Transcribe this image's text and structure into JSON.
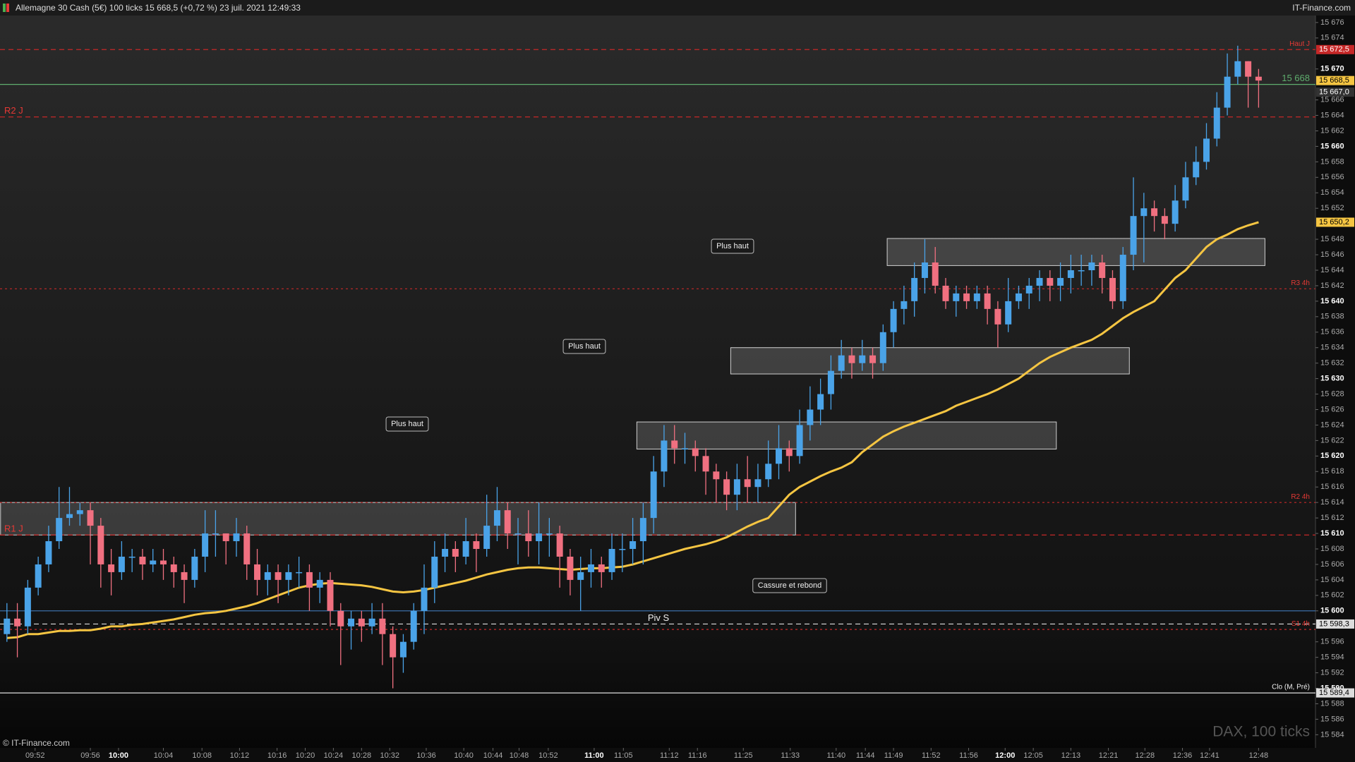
{
  "header": {
    "title": "Allemagne 30 Cash (5€) 100 ticks 15 668,5 (+0,72 %) 23 juil. 2021 12:49:33",
    "site": "IT-Finance.com"
  },
  "footer": {
    "copyright": "© IT-Finance.com",
    "watermark": "DAX, 100 ticks"
  },
  "chart_data": {
    "type": "candlestick",
    "colors": {
      "up": "#4aa3e8",
      "down": "#f07080"
    },
    "open": [
      15597,
      15599,
      15598,
      15603,
      15606,
      15609,
      15612,
      15612.5,
      15613,
      15611,
      15606,
      15605,
      15607,
      15607,
      15606,
      15606.5,
      15606,
      15605,
      15604,
      15607,
      15610,
      15610,
      15609,
      15610,
      15606,
      15604,
      15605,
      15604,
      15605,
      15605,
      15603,
      15604,
      15600,
      15598,
      15599,
      15598,
      15599,
      15597,
      15594,
      15596,
      15600,
      15603,
      15607,
      15608,
      15607,
      15609,
      15608,
      15611,
      15613,
      15610,
      15610,
      15609,
      15610,
      15610,
      15607,
      15604,
      15605,
      15606,
      15605,
      15608,
      15608,
      15609,
      15612,
      15618,
      15622,
      15621,
      15621,
      15620,
      15618,
      15617,
      15615,
      15617,
      15616,
      15617,
      15619,
      15621,
      15620,
      15624,
      15626,
      15628,
      15631,
      15633,
      15632,
      15633,
      15632,
      15636,
      15639,
      15640,
      15643,
      15645,
      15642,
      15640,
      15641,
      15640,
      15641,
      15639,
      15637,
      15640,
      15641,
      15642,
      15643,
      15642,
      15643,
      15644,
      15644,
      15645,
      15643,
      15640,
      15646,
      15651,
      15652,
      15651,
      15650,
      15653,
      15656,
      15658,
      15661,
      15665,
      15669,
      15671,
      15669
    ],
    "high": [
      15601,
      15601,
      15604,
      15607,
      15611,
      15616,
      15616,
      15614,
      15614,
      15612,
      15608,
      15609,
      15608,
      15608,
      15608,
      15608,
      15607,
      15606,
      15608,
      15613,
      15613,
      15610,
      15612,
      15611,
      15608,
      15606,
      15606,
      15606,
      15607,
      15606,
      15605,
      15605,
      15601,
      15600,
      15600,
      15601,
      15601,
      15598,
      15597,
      15601,
      15606,
      15609,
      15610,
      15609,
      15612,
      15610,
      15615,
      15616,
      15614,
      15612,
      15613,
      15614,
      15612,
      15611,
      15608,
      15607,
      15608,
      15607,
      15610,
      15610,
      15612,
      15614,
      15620,
      15624,
      15624,
      15623,
      15622,
      15621,
      15619,
      15618,
      15619,
      15620,
      15619,
      15622,
      15624,
      15622,
      15626,
      15629,
      15630,
      15633,
      15635,
      15634,
      15635,
      15634,
      15637,
      15640,
      15642,
      15645,
      15648,
      15647,
      15643,
      15642,
      15642,
      15642,
      15642,
      15640,
      15643,
      15642,
      15643,
      15644,
      15644,
      15645,
      15646,
      15646,
      15646,
      15646,
      15644,
      15647,
      15656,
      15654,
      15653,
      15652,
      15655,
      15658,
      15660,
      15663,
      15667,
      15672,
      15673,
      15671,
      15670
    ],
    "low": [
      15596,
      15594,
      15597,
      15602,
      15605,
      15608,
      15611,
      15611,
      15606,
      15603,
      15602,
      15604,
      15605,
      15604,
      15605,
      15604,
      15603,
      15601,
      15603,
      15605,
      15607,
      15606,
      15607,
      15604,
      15602,
      15602,
      15601,
      15602,
      15603,
      15600,
      15601,
      15598,
      15593,
      15595,
      15596,
      15597,
      15593,
      15590,
      15592,
      15595,
      15597,
      15601,
      15605,
      15605,
      15606,
      15605,
      15607,
      15609,
      15608,
      15606,
      15607,
      15606,
      15607,
      15603,
      15602,
      15600,
      15603,
      15603,
      15604,
      15605,
      15606,
      15606,
      15610,
      15616,
      15619,
      15619,
      15618,
      15615,
      15614,
      15613,
      15613,
      15614,
      15614,
      15616,
      15617,
      15618,
      15619,
      15622,
      15624,
      15626,
      15630,
      15630,
      15631,
      15630,
      15631,
      15634,
      15637,
      15638,
      15641,
      15641,
      15639,
      15638,
      15639,
      15639,
      15637,
      15634,
      15636,
      15639,
      15639,
      15640,
      15640,
      15640,
      15641,
      15642,
      15642,
      15641,
      15639,
      15639,
      15644,
      15645,
      15649,
      15648,
      15649,
      15652,
      15655,
      15657,
      15660,
      15664,
      15668,
      15665,
      15665
    ],
    "close": [
      15599,
      15598,
      15603,
      15606,
      15609,
      15612,
      15612.5,
      15613,
      15611,
      15606,
      15605,
      15607,
      15607,
      15606,
      15606.5,
      15606,
      15605,
      15604,
      15607,
      15610,
      15610,
      15609,
      15610,
      15606,
      15604,
      15605,
      15604,
      15605,
      15605,
      15603,
      15604,
      15600,
      15598,
      15599,
      15598,
      15599,
      15597,
      15594,
      15596,
      15600,
      15603,
      15607,
      15608,
      15607,
      15609,
      15608,
      15611,
      15613,
      15610,
      15610,
      15609,
      15610,
      15610,
      15607,
      15604,
      15605,
      15606,
      15605,
      15608,
      15608,
      15609,
      15612,
      15618,
      15622,
      15621,
      15621,
      15620,
      15618,
      15617,
      15615,
      15617,
      15616,
      15617,
      15619,
      15621,
      15620,
      15624,
      15626,
      15628,
      15631,
      15633,
      15632,
      15633,
      15632,
      15636,
      15639,
      15640,
      15643,
      15645,
      15642,
      15640,
      15641,
      15640,
      15641,
      15639,
      15637,
      15640,
      15641,
      15642,
      15643,
      15642,
      15643,
      15644,
      15644,
      15645,
      15643,
      15640,
      15646,
      15651,
      15652,
      15651,
      15650,
      15653,
      15656,
      15658,
      15661,
      15665,
      15669,
      15671,
      15669,
      15668.5
    ],
    "ma": {
      "color": "#f5c542",
      "values": [
        15596.5,
        15596.6,
        15597,
        15597,
        15597.2,
        15597.4,
        15597.4,
        15597.5,
        15597.5,
        15597.7,
        15598,
        15598,
        15598.2,
        15598.3,
        15598.5,
        15598.7,
        15598.9,
        15599.2,
        15599.5,
        15599.7,
        15599.8,
        15600,
        15600.3,
        15600.6,
        15601,
        15601.5,
        15602,
        15602.5,
        15603,
        15603.3,
        15603.5,
        15603.6,
        15603.5,
        15603.4,
        15603.3,
        15603.1,
        15602.8,
        15602.5,
        15602.4,
        15602.5,
        15602.7,
        15603,
        15603.3,
        15603.6,
        15603.9,
        15604.3,
        15604.7,
        15605,
        15605.3,
        15605.5,
        15605.6,
        15605.6,
        15605.5,
        15605.4,
        15605.3,
        15605.4,
        15605.5,
        15605.5,
        15605.6,
        15605.7,
        15606,
        15606.4,
        15606.8,
        15607.2,
        15607.6,
        15608,
        15608.3,
        15608.6,
        15609,
        15609.5,
        15610.2,
        15610.9,
        15611.5,
        15612,
        15613.5,
        15615,
        15616,
        15616.7,
        15617.4,
        15618,
        15618.5,
        15619.2,
        15620.5,
        15621.5,
        15622.5,
        15623.2,
        15623.8,
        15624.3,
        15624.8,
        15625.3,
        15625.8,
        15626.5,
        15627,
        15627.5,
        15628,
        15628.6,
        15629.3,
        15630,
        15631,
        15632,
        15632.8,
        15633.4,
        15634,
        15634.5,
        15635,
        15635.8,
        15636.8,
        15637.8,
        15638.6,
        15639.3,
        15640,
        15641.5,
        15643,
        15644,
        15645.5,
        15647,
        15648,
        15648.6,
        15649.3,
        15649.8,
        15650.2
      ]
    },
    "zones": [
      {
        "from": 0,
        "to": 75,
        "low": 15609.8,
        "high": 15614
      },
      {
        "from": 61,
        "to": 100,
        "low": 15620.9,
        "high": 15624.4
      },
      {
        "from": 70,
        "to": 107,
        "low": 15630.6,
        "high": 15634
      },
      {
        "from": 85,
        "to": 120,
        "low": 15644.6,
        "high": 15648.1
      }
    ],
    "levels": [
      {
        "name": "Haut J",
        "value": 15672.5,
        "color": "#c62828",
        "style": "dashed",
        "label_side": "right"
      },
      {
        "name": "15 668",
        "value": 15668,
        "color": "#5fae6e",
        "style": "solid",
        "label_side": "right"
      },
      {
        "name": "R2 J",
        "value": 15663.8,
        "color": "#c62828",
        "style": "dashed",
        "label_side": "left"
      },
      {
        "name": "R3 4h",
        "value": 15641.6,
        "color": "#c62828",
        "style": "dotted",
        "label_side": "right"
      },
      {
        "name": "R2 4h",
        "value": 15614,
        "color": "#c62828",
        "style": "dotted",
        "label_side": "right"
      },
      {
        "name": "R1 J",
        "value": 15609.8,
        "color": "#c62828",
        "style": "dashed",
        "label_side": "left"
      },
      {
        "value": 15600,
        "color": "#3b6ea8",
        "style": "solid"
      },
      {
        "name": "Piv S",
        "value": 15598.3,
        "color": "#dddddd",
        "style": "dashed",
        "label_side": "center"
      },
      {
        "name": "S1 4h",
        "value": 15597.6,
        "color": "#c62828",
        "style": "dotted",
        "label_side": "right"
      },
      {
        "name": "Clo (M, Pré)",
        "value": 15589.4,
        "color": "#dddddd",
        "style": "solid",
        "label_side": "right"
      }
    ],
    "price_tags": [
      {
        "value": 15672.5,
        "label": "15 672,5",
        "color": "#c62828"
      },
      {
        "value": 15668.5,
        "label": "15 668,5",
        "color": "#f5c542"
      },
      {
        "value": 15667,
        "label": "15 667,0",
        "color": "#333333"
      },
      {
        "value": 15650.2,
        "label": "15 650,2",
        "color": "#f5c542"
      },
      {
        "value": 15598.3,
        "label": "15 598,3",
        "color": "#dddddd"
      },
      {
        "value": 15589.4,
        "label": "15 589,4",
        "color": "#dddddd"
      }
    ],
    "annotations": [
      "Plus haut",
      "Plus haut",
      "Plus haut",
      "Cassure et rebond"
    ],
    "ylim": [
      15582.3,
      15676.9
    ],
    "yticks": [
      {
        "value": 15584,
        "label": "15 584"
      },
      {
        "value": 15586,
        "label": "15 586"
      },
      {
        "value": 15588,
        "label": "15 588"
      },
      {
        "value": 15590,
        "label": "15 590"
      },
      {
        "value": 15592,
        "label": "15 592"
      },
      {
        "value": 15594,
        "label": "15 594"
      },
      {
        "value": 15596,
        "label": "15 596"
      },
      {
        "value": 15600,
        "label": "15 600"
      },
      {
        "value": 15602,
        "label": "15 602"
      },
      {
        "value": 15604,
        "label": "15 604"
      },
      {
        "value": 15606,
        "label": "15 606"
      },
      {
        "value": 15608,
        "label": "15 608"
      },
      {
        "value": 15610,
        "label": "15 610"
      },
      {
        "value": 15612,
        "label": "15 612"
      },
      {
        "value": 15614,
        "label": "15 614"
      },
      {
        "value": 15616,
        "label": "15 616"
      },
      {
        "value": 15618,
        "label": "15 618"
      },
      {
        "value": 15620,
        "label": "15 620"
      },
      {
        "value": 15622,
        "label": "15 622"
      },
      {
        "value": 15624,
        "label": "15 624"
      },
      {
        "value": 15626,
        "label": "15 626"
      },
      {
        "value": 15628,
        "label": "15 628"
      },
      {
        "value": 15630,
        "label": "15 630"
      },
      {
        "value": 15632,
        "label": "15 632"
      },
      {
        "value": 15634,
        "label": "15 634"
      },
      {
        "value": 15636,
        "label": "15 636"
      },
      {
        "value": 15638,
        "label": "15 638"
      },
      {
        "value": 15640,
        "label": "15 640"
      },
      {
        "value": 15642,
        "label": "15 642"
      },
      {
        "value": 15644,
        "label": "15 644"
      },
      {
        "value": 15646,
        "label": "15 646"
      },
      {
        "value": 15648,
        "label": "15 648"
      },
      {
        "value": 15652,
        "label": "15 652"
      },
      {
        "value": 15654,
        "label": "15 654"
      },
      {
        "value": 15656,
        "label": "15 656"
      },
      {
        "value": 15658,
        "label": "15 658"
      },
      {
        "value": 15660,
        "label": "15 660"
      },
      {
        "value": 15662,
        "label": "15 662"
      },
      {
        "value": 15664,
        "label": "15 664"
      },
      {
        "value": 15666,
        "label": "15 666"
      },
      {
        "value": 15670,
        "label": "15 670"
      },
      {
        "value": 15674,
        "label": "15 674"
      },
      {
        "value": 15676,
        "label": "15 676"
      }
    ],
    "xticks": [
      {
        "value": 2.7,
        "label": "09:52"
      },
      {
        "value": 8,
        "label": "09:56"
      },
      {
        "value": 10.7,
        "label": "10:00"
      },
      {
        "value": 15,
        "label": "10:04"
      },
      {
        "value": 18.7,
        "label": "10:08"
      },
      {
        "value": 22.3,
        "label": "10:12"
      },
      {
        "value": 25.9,
        "label": "10:16"
      },
      {
        "value": 28.6,
        "label": "10:20"
      },
      {
        "value": 31.3,
        "label": "10:24"
      },
      {
        "value": 34,
        "label": "10:28"
      },
      {
        "value": 36.7,
        "label": "10:32"
      },
      {
        "value": 40.2,
        "label": "10:36"
      },
      {
        "value": 43.8,
        "label": "10:40"
      },
      {
        "value": 46.6,
        "label": "10:44"
      },
      {
        "value": 49.1,
        "label": "10:48"
      },
      {
        "value": 51.9,
        "label": "10:52"
      },
      {
        "value": 56.3,
        "label": "11:00"
      },
      {
        "value": 59.1,
        "label": "11:05"
      },
      {
        "value": 63.5,
        "label": "11:12"
      },
      {
        "value": 66.2,
        "label": "11:16"
      },
      {
        "value": 70.6,
        "label": "11:25"
      },
      {
        "value": 75.1,
        "label": "11:33"
      },
      {
        "value": 79.5,
        "label": "11:40"
      },
      {
        "value": 82.3,
        "label": "11:44"
      },
      {
        "value": 85,
        "label": "11:49"
      },
      {
        "value": 88.6,
        "label": "11:52"
      },
      {
        "value": 92.2,
        "label": "11:56"
      },
      {
        "value": 95.7,
        "label": "12:00"
      },
      {
        "value": 98.4,
        "label": "12:05"
      },
      {
        "value": 102,
        "label": "12:13"
      },
      {
        "value": 105.6,
        "label": "12:21"
      },
      {
        "value": 109.1,
        "label": "12:28"
      },
      {
        "value": 112.7,
        "label": "12:36"
      },
      {
        "value": 115.3,
        "label": "12:41"
      },
      {
        "value": 120,
        "label": "12:48"
      }
    ]
  }
}
